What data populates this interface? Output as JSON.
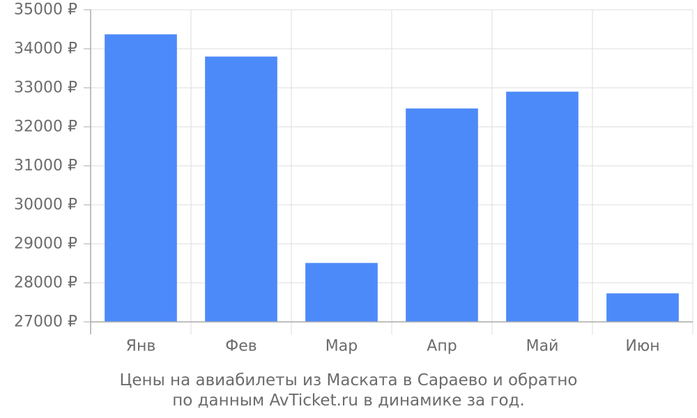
{
  "chart_data": {
    "type": "bar",
    "categories": [
      "Янв",
      "Фев",
      "Мар",
      "Апр",
      "Май",
      "Июн"
    ],
    "values": [
      34370,
      33800,
      28510,
      32470,
      32900,
      27730
    ],
    "ylim": [
      27000,
      35000
    ],
    "yticks": [
      27000,
      28000,
      29000,
      30000,
      31000,
      32000,
      33000,
      34000,
      35000
    ],
    "y_unit_suffix": " ₽",
    "grid": true,
    "bar_color": "#4d8af9",
    "grid_color": "#dddddd",
    "axis_color": "#aaaaaa",
    "caption_lines": [
      "Цены на авиабилеты из Маската в Сараево и обратно",
      "по данным AvTicket.ru в динамике за год."
    ]
  }
}
